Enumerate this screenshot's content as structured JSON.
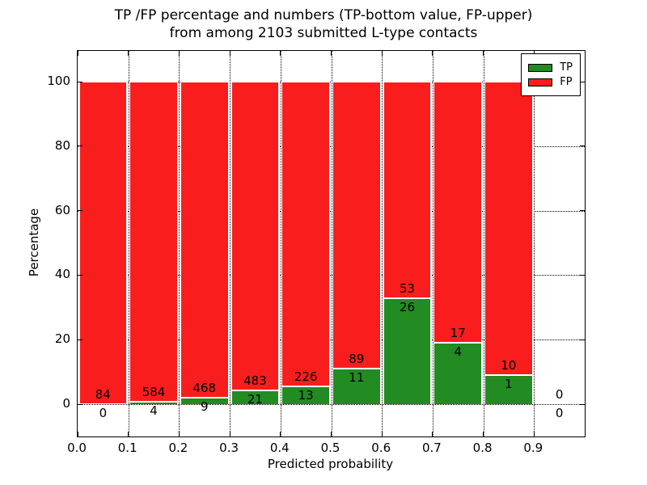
{
  "figure": {
    "title_lines": [
      "TP /FP percentage and numbers (TP-bottom value, FP-upper)",
      "from among 2103 submitted L-type contacts"
    ]
  },
  "chart_data": {
    "type": "bar",
    "stacked": true,
    "title": "TP /FP percentage and numbers (TP-bottom value, FP-upper) from among 2103 submitted L-type contacts",
    "xlabel": "Predicted probability",
    "ylabel": "Percentage",
    "total_contacts": 2103,
    "bin_edges": [
      0.0,
      0.1,
      0.2,
      0.3,
      0.4,
      0.5,
      0.6,
      0.7,
      0.8,
      0.9,
      1.0
    ],
    "x_tick_labels": [
      "0.0",
      "0.1",
      "0.2",
      "0.3",
      "0.4",
      "0.5",
      "0.6",
      "0.7",
      "0.8",
      "0.9"
    ],
    "y_ticks": [
      0,
      20,
      40,
      60,
      80,
      100
    ],
    "y_tick_labels": [
      "0",
      "20",
      "40",
      "60",
      "80",
      "100"
    ],
    "xlim": [
      0.0,
      1.0
    ],
    "ylim": [
      -10.5,
      110
    ],
    "grid": "dotted",
    "bar_edge_color": "#ffffff",
    "series": [
      {
        "name": "TP",
        "color": "#228b22",
        "counts": [
          0,
          4,
          9,
          21,
          13,
          11,
          26,
          4,
          1,
          0
        ]
      },
      {
        "name": "FP",
        "color": "#fa1d1d",
        "counts": [
          84,
          584,
          468,
          483,
          226,
          89,
          53,
          17,
          10,
          0
        ]
      }
    ],
    "tp_percent": [
      0,
      0.68,
      1.89,
      4.17,
      5.44,
      11.0,
      32.91,
      19.05,
      9.09,
      0
    ],
    "fp_percent": [
      100,
      99.32,
      98.11,
      95.83,
      94.56,
      89.0,
      67.09,
      80.95,
      90.91,
      0
    ],
    "legend": {
      "position": "upper right",
      "entries": [
        {
          "label": "TP",
          "color": "#228b22"
        },
        {
          "label": "FP",
          "color": "#fa1d1d"
        }
      ]
    }
  }
}
